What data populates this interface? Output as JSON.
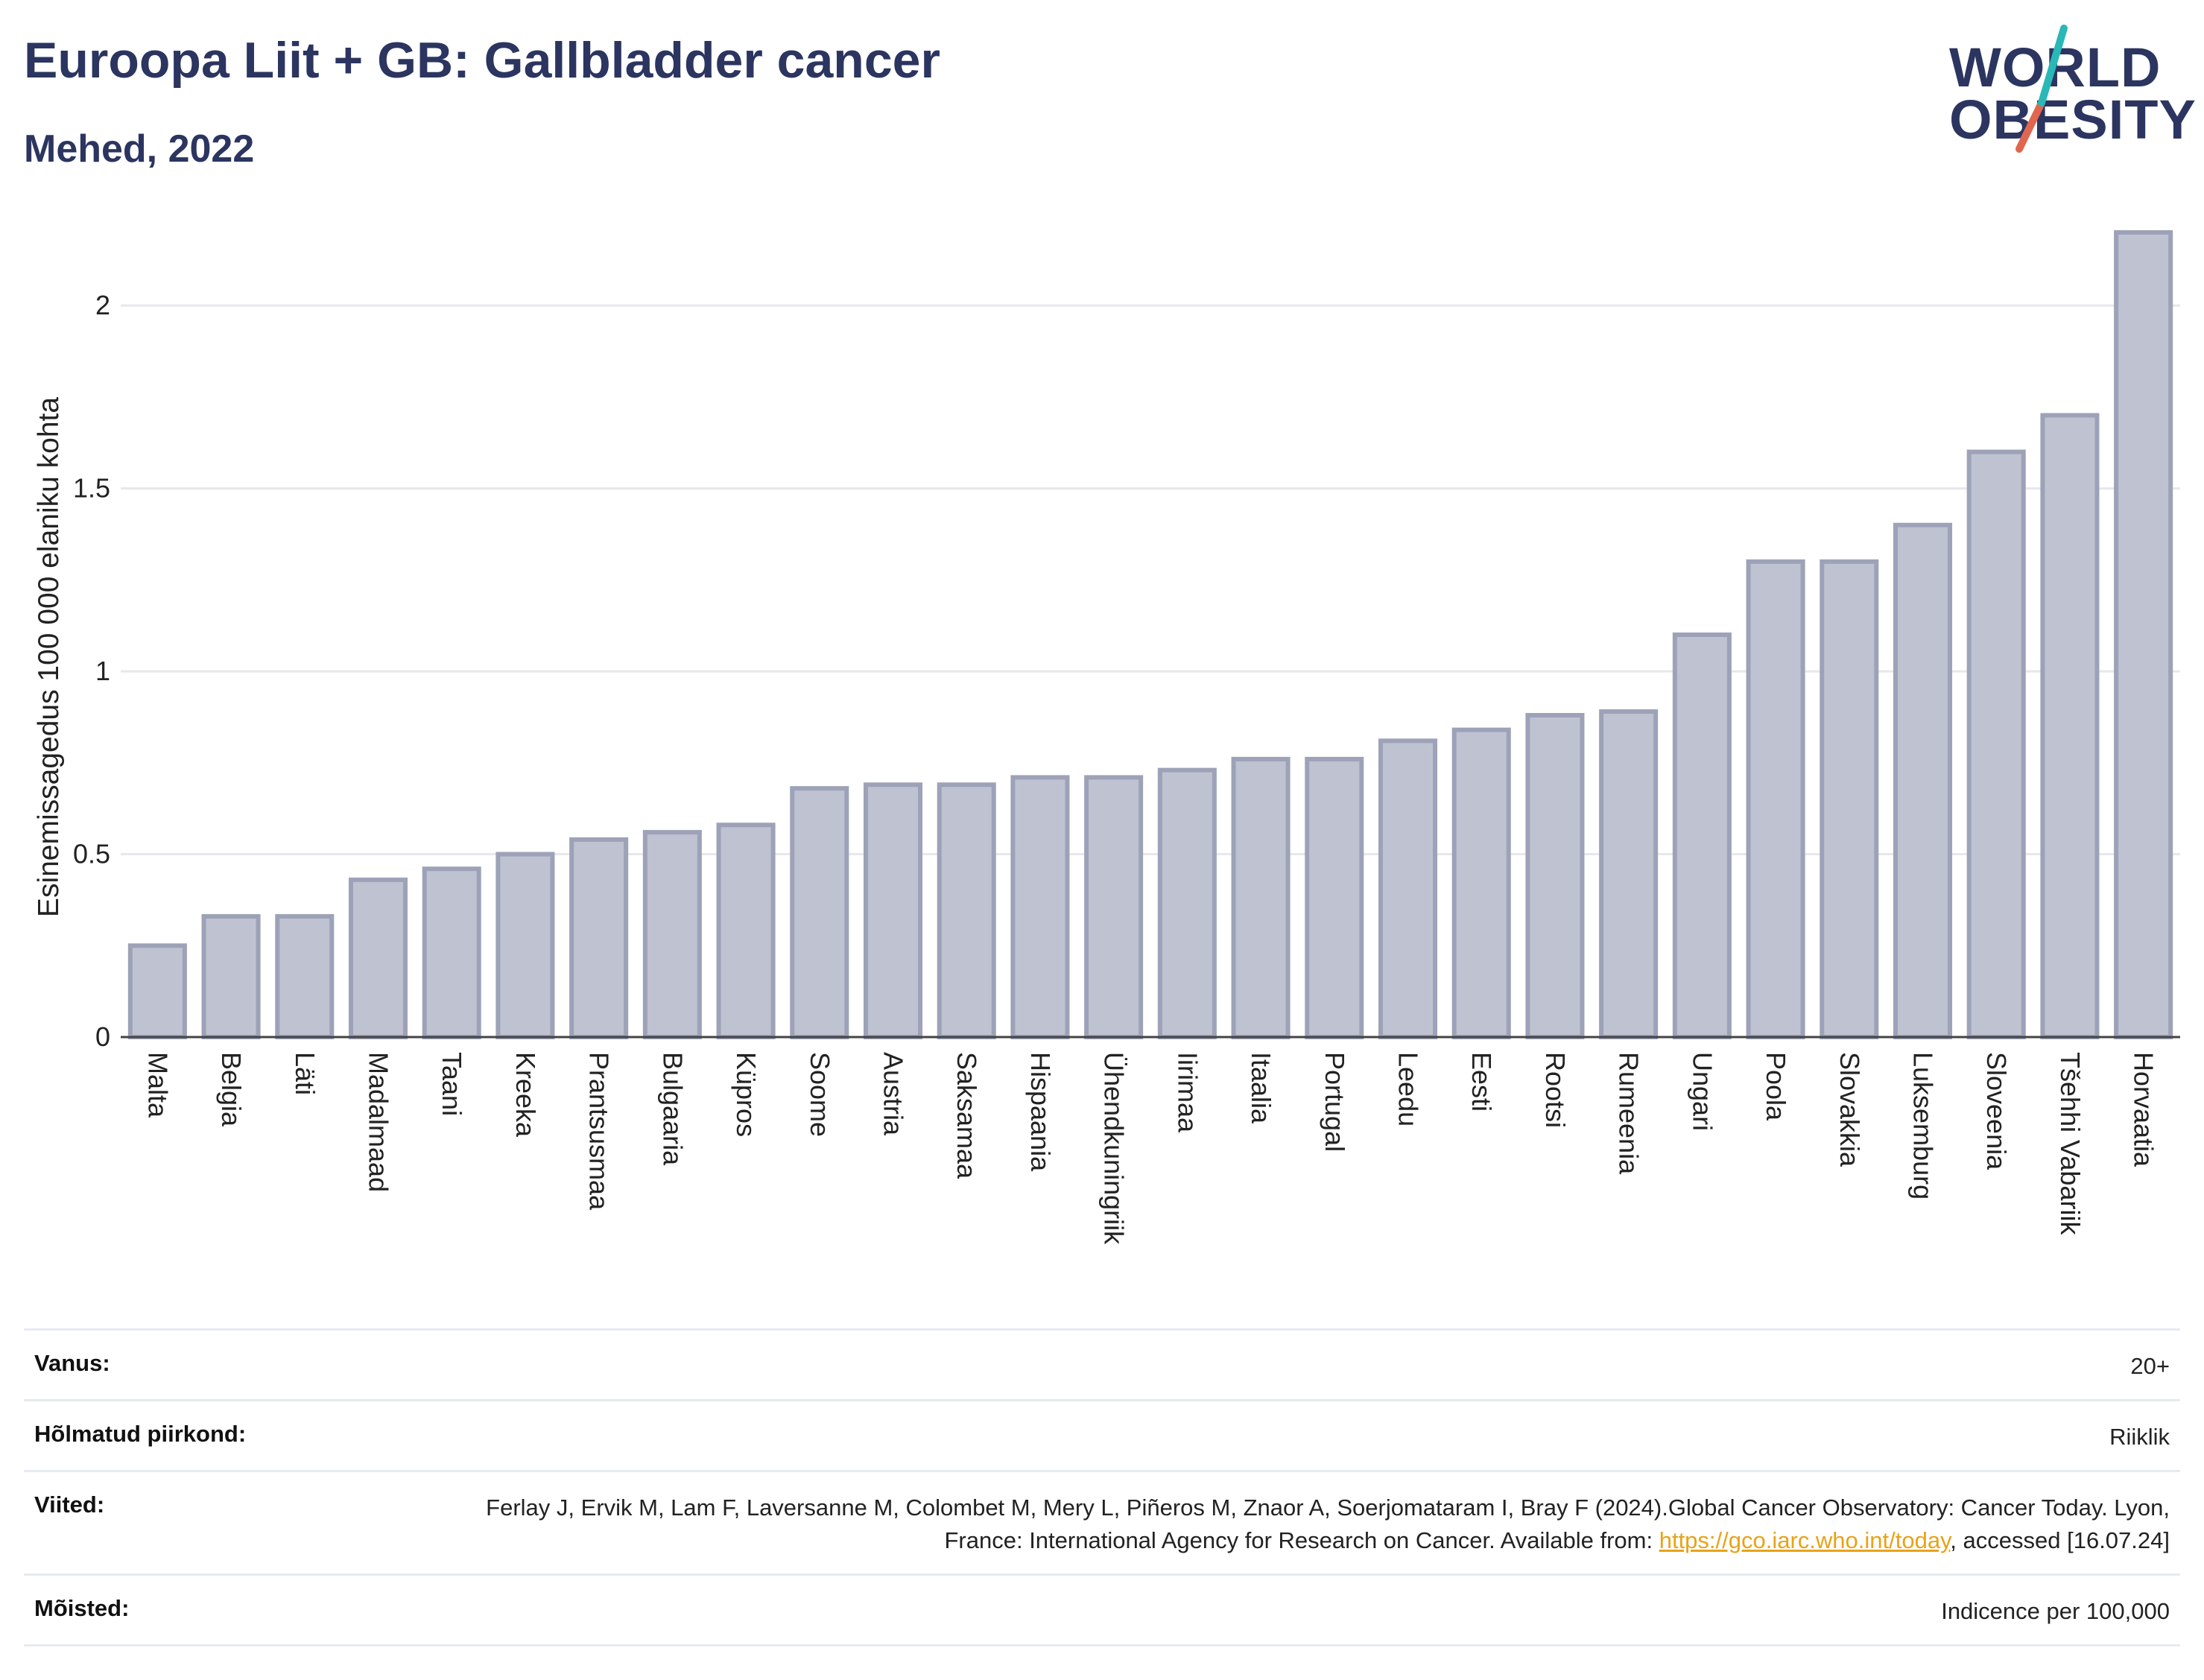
{
  "header": {
    "title": "Euroopa Liit + GB: Gallbladder cancer",
    "subtitle": "Mehed, 2022"
  },
  "logo": {
    "line1": "WORLD",
    "line2": "OBESITY",
    "colors": {
      "text": "#2b3560",
      "slash_top": "#2ab7b7",
      "slash_bottom": "#e0664f"
    }
  },
  "chart_data": {
    "type": "bar",
    "ylabel": "Esinemissagedus 100 000 elaniku kohta",
    "xlabel": "",
    "ylim": [
      0,
      2.2
    ],
    "yticks": [
      "0",
      "0.5",
      "1",
      "1.5",
      "2"
    ],
    "ytick_values": [
      0,
      0.5,
      1,
      1.5,
      2
    ],
    "grid": true,
    "bar_color": "#bfc2d0",
    "bar_edge_color": "#9da2b8",
    "categories": [
      "Malta",
      "Belgia",
      "Läti",
      "Madalmaad",
      "Taani",
      "Kreeka",
      "Prantsusmaa",
      "Bulgaaria",
      "Küpros",
      "Soome",
      "Austria",
      "Saksamaa",
      "Hispaania",
      "Ühendkuningriik",
      "Iirimaa",
      "Itaalia",
      "Portugal",
      "Leedu",
      "Eesti",
      "Rootsi",
      "Rumeenia",
      "Ungari",
      "Poola",
      "Slovakkia",
      "Luksemburg",
      "Sloveenia",
      "Tšehhi Vabariik",
      "Horvaatia"
    ],
    "values": [
      0.25,
      0.33,
      0.33,
      0.43,
      0.46,
      0.5,
      0.54,
      0.56,
      0.58,
      0.68,
      0.69,
      0.69,
      0.71,
      0.71,
      0.73,
      0.76,
      0.76,
      0.81,
      0.84,
      0.88,
      0.89,
      1.1,
      1.3,
      1.3,
      1.4,
      1.6,
      1.7,
      2.2
    ]
  },
  "meta": {
    "age_label": "Vanus:",
    "age_value": "20+",
    "region_label": "Hõlmatud piirkond:",
    "region_value": "Riiklik",
    "refs_label": "Viited:",
    "refs_text_1": "Ferlay J, Ervik M, Lam F, Laversanne M, Colombet M, Mery L, Piñeros M, Znaor A, Soerjomataram I, Bray F (2024).Global Cancer Observatory: Cancer Today. Lyon, France: International Agency for Research on Cancer. Available from: ",
    "refs_link": "https://gco.iarc.who.int/today",
    "refs_text_2": ", accessed [16.07.24]",
    "definitions_label": "Mõisted:",
    "definitions_value": "Indicence per 100,000"
  }
}
